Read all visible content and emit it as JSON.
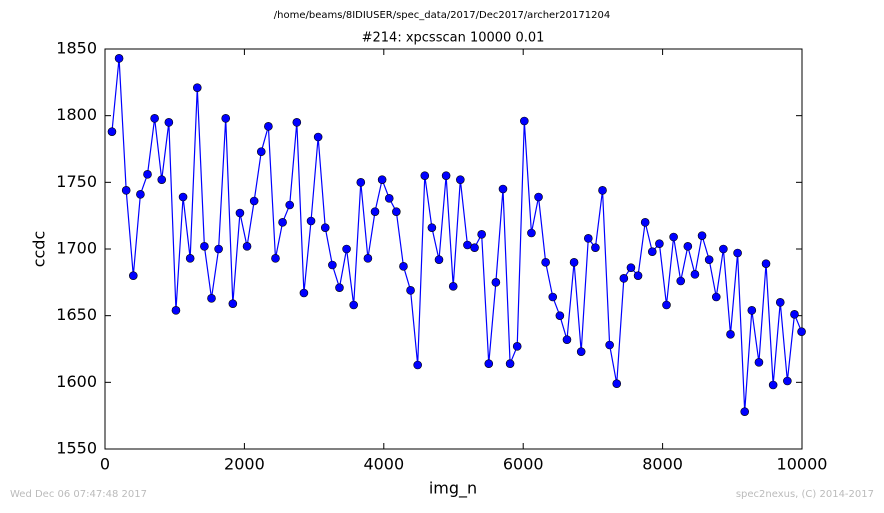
{
  "chart_data": {
    "type": "line",
    "suptitle": "/home/beams/8IDIUSER/spec_data/2017/Dec2017/archer20171204",
    "title": "#214: xpcsscan 10000 0.01",
    "x_label": "img_n",
    "y_label": "ccdc",
    "timestamp": "Wed Dec 06 07:47:48 2017",
    "credit": "spec2nexus, (C) 2014-2017",
    "xlim": [
      0,
      10000
    ],
    "xticks": [
      0,
      2000,
      4000,
      6000,
      8000,
      10000
    ],
    "ylim": [
      1550,
      1850
    ],
    "yticks": [
      1550,
      1600,
      1650,
      1700,
      1750,
      1800,
      1850
    ],
    "color": "#0000ff",
    "markers": true,
    "x": [
      100,
      202,
      304,
      406,
      508,
      610,
      712,
      814,
      916,
      1018,
      1120,
      1222,
      1324,
      1426,
      1528,
      1630,
      1732,
      1834,
      1936,
      2038,
      2140,
      2242,
      2344,
      2446,
      2548,
      2650,
      2752,
      2854,
      2956,
      3058,
      3160,
      3262,
      3364,
      3466,
      3568,
      3670,
      3772,
      3874,
      3976,
      4078,
      4180,
      4282,
      4384,
      4486,
      4588,
      4690,
      4792,
      4894,
      4996,
      5098,
      5200,
      5302,
      5404,
      5506,
      5608,
      5710,
      5812,
      5914,
      6016,
      6118,
      6220,
      6322,
      6424,
      6526,
      6628,
      6730,
      6832,
      6934,
      7036,
      7138,
      7240,
      7342,
      7444,
      7546,
      7648,
      7750,
      7852,
      7954,
      8056,
      8158,
      8260,
      8362,
      8464,
      8566,
      8668,
      8770,
      8872,
      8974,
      9076,
      9178,
      9280,
      9382,
      9484,
      9586,
      9688,
      9790,
      9892,
      9994
    ],
    "values": [
      1788,
      1843,
      1744,
      1680,
      1741,
      1756,
      1798,
      1752,
      1795,
      1654,
      1739,
      1693,
      1821,
      1702,
      1663,
      1700,
      1798,
      1659,
      1727,
      1702,
      1736,
      1773,
      1792,
      1693,
      1720,
      1733,
      1795,
      1667,
      1721,
      1784,
      1716,
      1688,
      1671,
      1700,
      1658,
      1750,
      1693,
      1728,
      1752,
      1738,
      1728,
      1687,
      1669,
      1613,
      1755,
      1716,
      1692,
      1755,
      1672,
      1752,
      1703,
      1701,
      1711,
      1614,
      1675,
      1745,
      1614,
      1627,
      1796,
      1712,
      1739,
      1690,
      1664,
      1650,
      1632,
      1690,
      1623,
      1708,
      1701,
      1744,
      1628,
      1599,
      1678,
      1686,
      1680,
      1720,
      1698,
      1704,
      1658,
      1709,
      1676,
      1702,
      1681,
      1710,
      1692,
      1664,
      1700,
      1636,
      1697,
      1578,
      1654,
      1615,
      1689,
      1598,
      1660,
      1601,
      1651,
      1638
    ]
  }
}
